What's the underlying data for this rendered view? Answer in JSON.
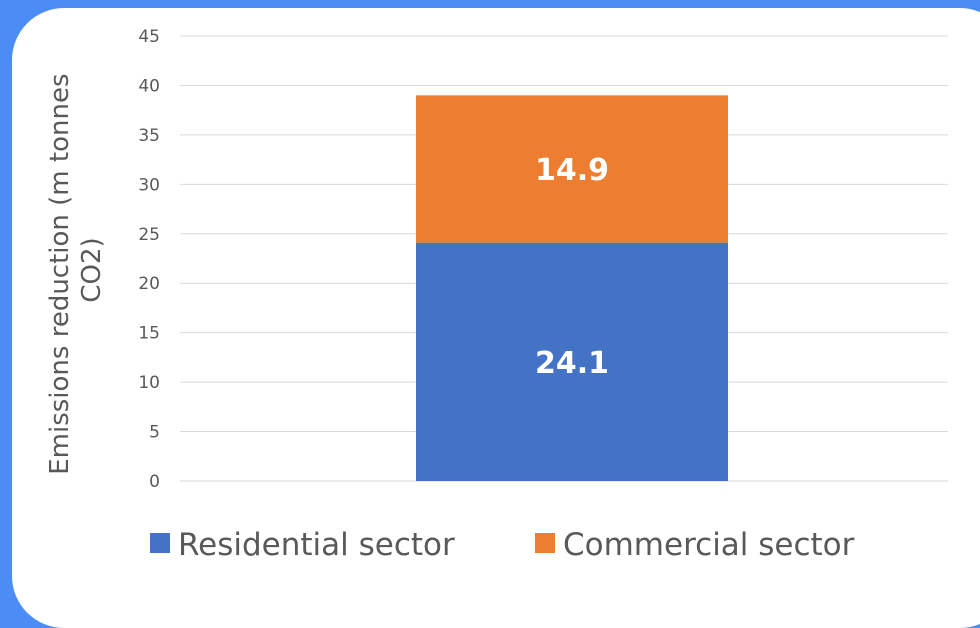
{
  "chart_data": {
    "type": "bar",
    "stacked": true,
    "categories": [
      ""
    ],
    "series": [
      {
        "name": "Residential sector",
        "values": [
          24.1
        ],
        "color": "#4472c4"
      },
      {
        "name": "Commercial sector",
        "values": [
          14.9
        ],
        "color": "#ed7d31"
      }
    ],
    "ylabel": "Emissions reduction (m tonnes CO2)",
    "ylabel_lines": [
      "Emissions reduction (m tonnes",
      "CO2)"
    ],
    "ylim": [
      0,
      45
    ],
    "yticks": [
      0,
      5,
      10,
      15,
      20,
      25,
      30,
      35,
      40,
      45
    ],
    "grid": true,
    "legend": "bottom"
  }
}
